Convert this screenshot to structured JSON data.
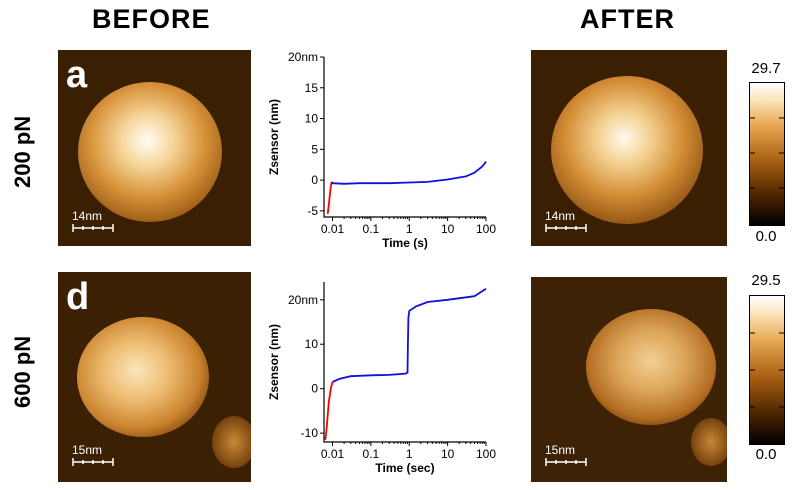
{
  "headers": {
    "before": "BEFORE",
    "after": "AFTER"
  },
  "rows": [
    {
      "force": "200 pN",
      "letter": "a",
      "scale_before": "14nm",
      "scale_after": "14nm",
      "colorbar": {
        "max": "29.7",
        "min": "0.0"
      },
      "chart": {
        "ylabel": "Zsensor (nm)",
        "xlabel": "Time (s)",
        "yticks": [
          "20nm",
          "15",
          "10",
          "5",
          "0",
          "-5"
        ],
        "xticks": [
          "0.01",
          "0.1",
          "1",
          "10",
          "100"
        ]
      }
    },
    {
      "force": "600 pN",
      "letter": "d",
      "scale_before": "15nm",
      "scale_after": "15nm",
      "colorbar": {
        "max": "29.5",
        "min": "0.0"
      },
      "chart": {
        "ylabel": "Zsensor (nm)",
        "xlabel": "Time (sec)",
        "yticks": [
          "20nm",
          "10",
          "0",
          "-10"
        ],
        "xticks": [
          "0.01",
          "0.1",
          "1",
          "10",
          "100"
        ]
      }
    }
  ],
  "colors": {
    "red_series": "#ff0000",
    "blue_series": "#1010e0"
  },
  "chart_data": [
    {
      "type": "line",
      "xscale": "log",
      "xlim": [
        0.006,
        100
      ],
      "ylim": [
        -6,
        20
      ],
      "series": [
        {
          "color": "#ff0000",
          "x": [
            0.0075,
            0.008,
            0.0085,
            0.009,
            0.0095
          ],
          "y": [
            -5.5,
            -4,
            -2.5,
            -1,
            -0.3
          ]
        },
        {
          "color": "#1010e0",
          "x": [
            0.0095,
            0.01,
            0.02,
            0.05,
            0.1,
            0.3,
            1,
            3,
            10,
            30,
            50,
            80,
            100
          ],
          "y": [
            -0.3,
            -0.5,
            -0.6,
            -0.5,
            -0.5,
            -0.5,
            -0.4,
            -0.3,
            0.1,
            0.6,
            1.2,
            2.2,
            3.0
          ]
        }
      ]
    },
    {
      "type": "line",
      "xscale": "log",
      "xlim": [
        0.006,
        100
      ],
      "ylim": [
        -12,
        24
      ],
      "series": [
        {
          "color": "#ff0000",
          "x": [
            0.0065,
            0.007,
            0.0075,
            0.008,
            0.009,
            0.01
          ],
          "y": [
            -11.5,
            -9,
            -6,
            -3,
            0,
            1.5
          ]
        },
        {
          "color": "#1010e0",
          "x": [
            0.01,
            0.015,
            0.03,
            0.1,
            0.3,
            0.8,
            0.9,
            0.92,
            0.95,
            1,
            1.5,
            3,
            10,
            50,
            100
          ],
          "y": [
            1.5,
            2.2,
            2.8,
            3.0,
            3.1,
            3.4,
            3.6,
            10,
            16,
            17.5,
            18.5,
            19.5,
            20,
            20.8,
            22.5
          ]
        }
      ]
    }
  ]
}
